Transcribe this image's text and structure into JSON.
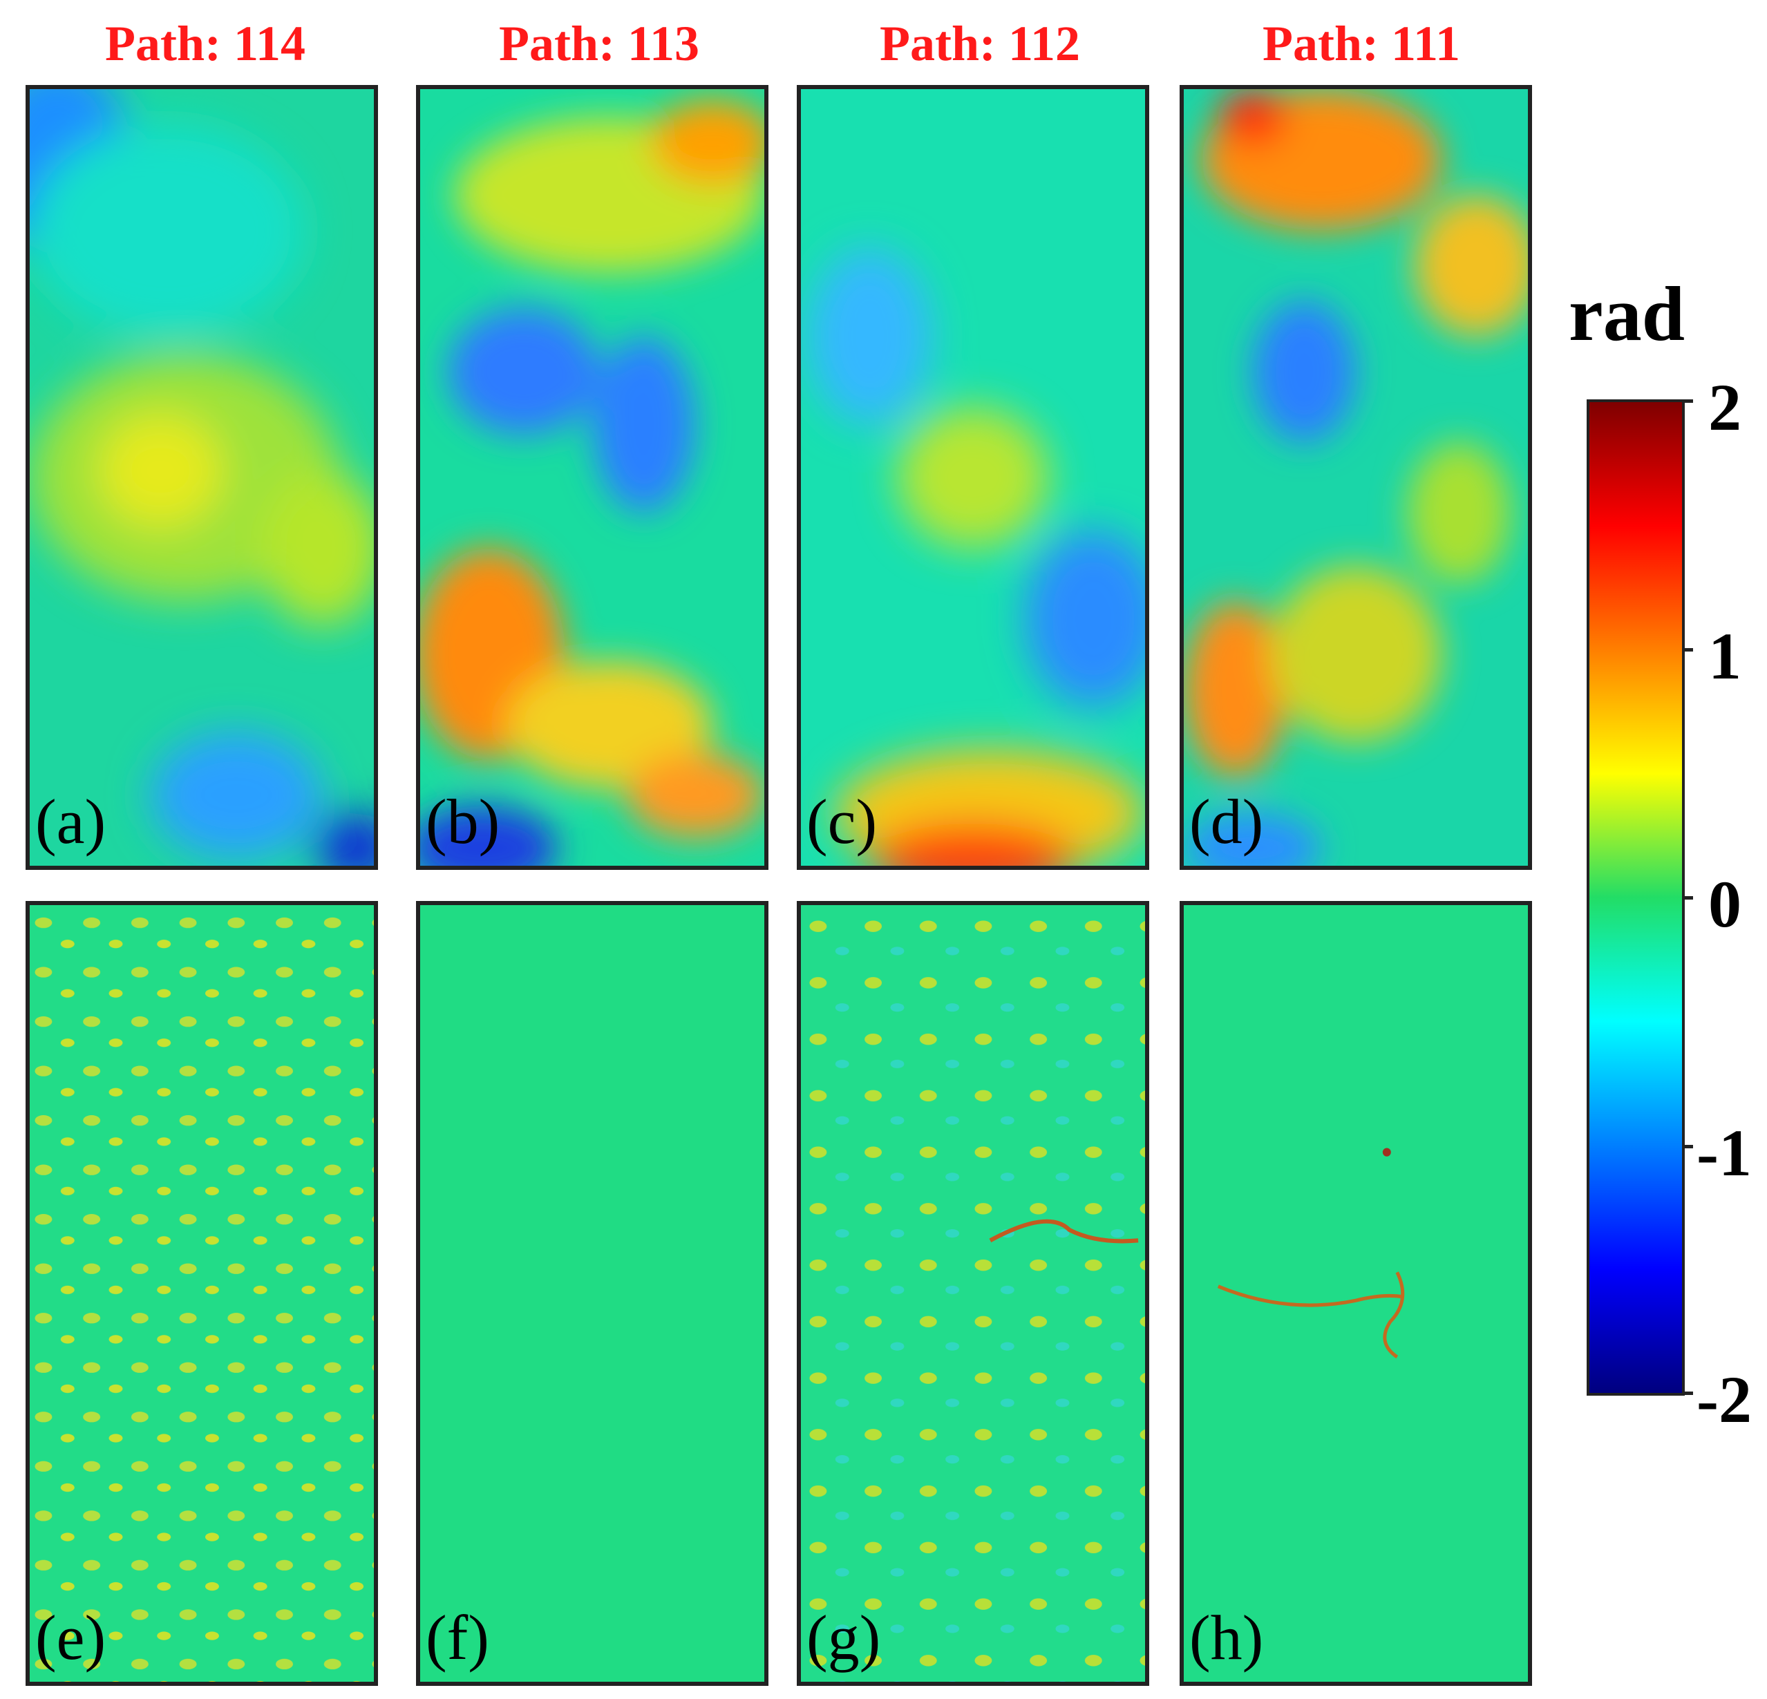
{
  "titles": [
    "Path: 114",
    "Path: 113",
    "Path: 112",
    "Path: 111"
  ],
  "panels": [
    {
      "label": "(a)"
    },
    {
      "label": "(b)"
    },
    {
      "label": "(c)"
    },
    {
      "label": "(d)"
    },
    {
      "label": "(e)"
    },
    {
      "label": "(f)"
    },
    {
      "label": "(g)"
    },
    {
      "label": "(h)"
    }
  ],
  "colorbar": {
    "unit": "rad",
    "ticks": [
      "2",
      "1",
      "0",
      "-1",
      "-2"
    ],
    "min": -2,
    "max": 2,
    "colors": [
      "#7f0000",
      "#ff0000",
      "#ff7f00",
      "#ffff00",
      "#22dd66",
      "#00ffff",
      "#007fff",
      "#0000ff",
      "#00007f"
    ]
  }
}
